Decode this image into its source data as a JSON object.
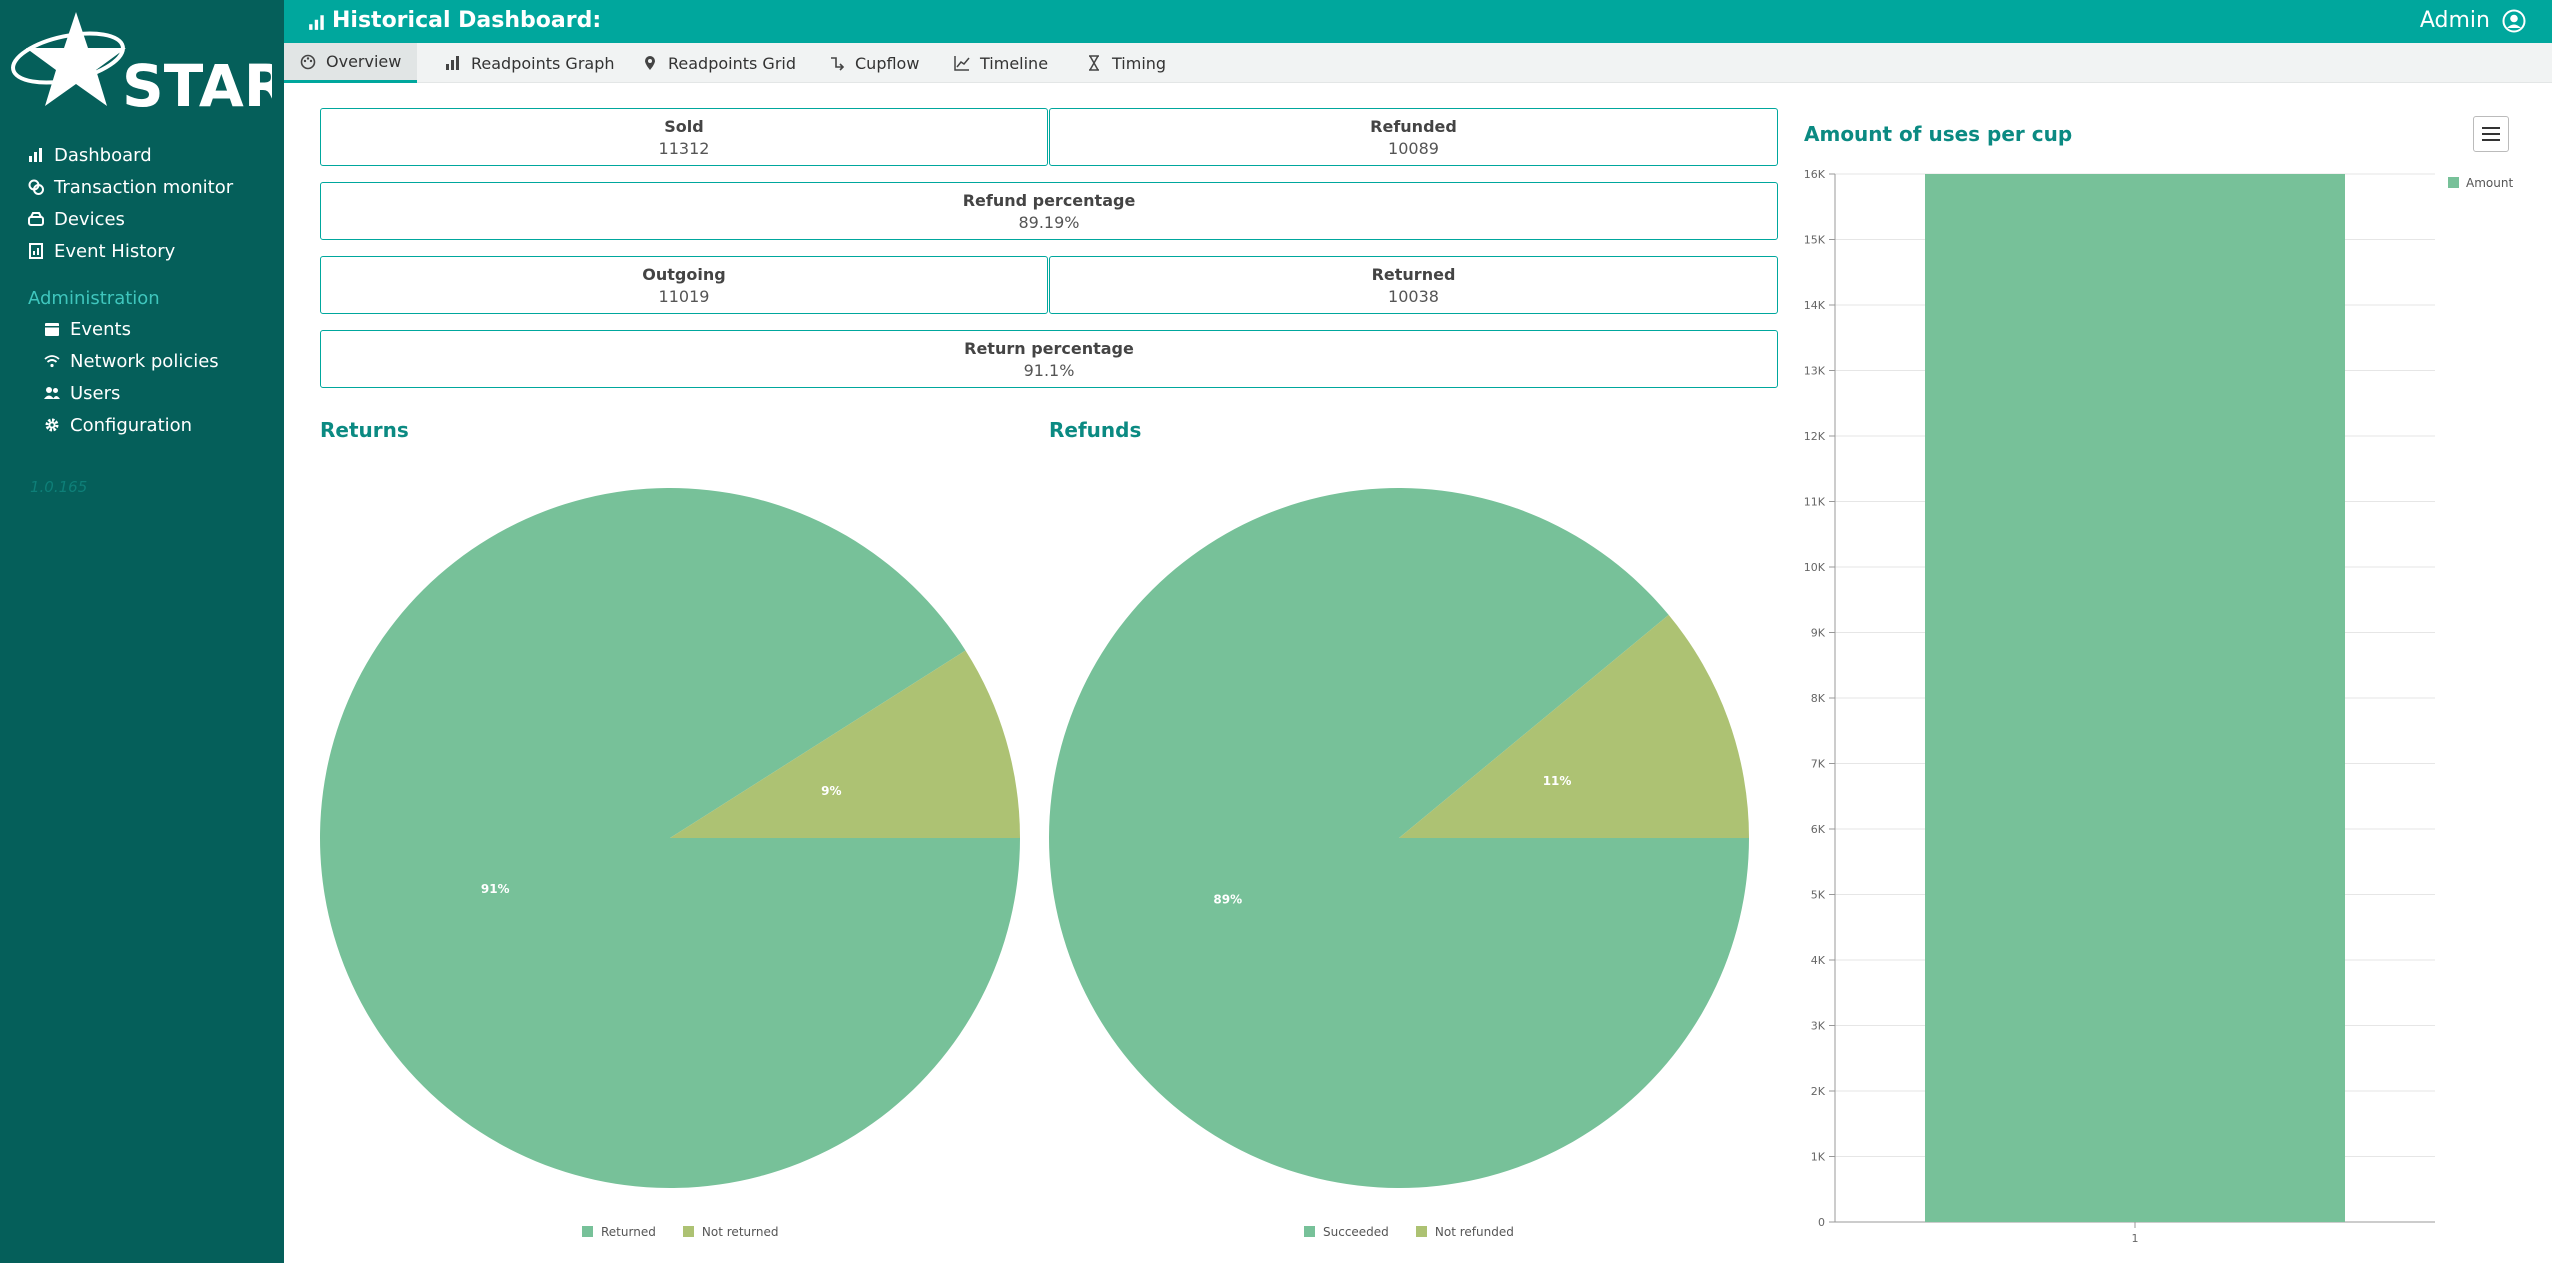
{
  "app": {
    "logo_text": "STAR",
    "version": "1.0.165"
  },
  "sidebar": {
    "items": [
      {
        "label": "Dashboard",
        "icon": "bar-chart-icon"
      },
      {
        "label": "Transaction monitor",
        "icon": "coins-icon"
      },
      {
        "label": "Devices",
        "icon": "hdd-icon"
      },
      {
        "label": "Event History",
        "icon": "chart-file-icon"
      }
    ],
    "admin_heading": "Administration",
    "admin_items": [
      {
        "label": "Events",
        "icon": "calendar-icon"
      },
      {
        "label": "Network policies",
        "icon": "wifi-icon"
      },
      {
        "label": "Users",
        "icon": "users-icon"
      },
      {
        "label": "Configuration",
        "icon": "gear-icon"
      }
    ]
  },
  "header": {
    "title": "Historical Dashboard:",
    "user": "Admin"
  },
  "tabs": [
    {
      "label": "Overview",
      "icon": "palette-icon",
      "active": true
    },
    {
      "label": "Readpoints Graph",
      "icon": "bar-chart-icon",
      "active": false
    },
    {
      "label": "Readpoints Grid",
      "icon": "map-pin-icon",
      "active": false
    },
    {
      "label": "Cupflow",
      "icon": "flow-icon",
      "active": false
    },
    {
      "label": "Timeline",
      "icon": "line-chart-icon",
      "active": false
    },
    {
      "label": "Timing",
      "icon": "hourglass-icon",
      "active": false
    }
  ],
  "stats": {
    "sold": {
      "label": "Sold",
      "value": "11312"
    },
    "refunded": {
      "label": "Refunded",
      "value": "10089"
    },
    "refund_pct": {
      "label": "Refund percentage",
      "value": "89.19%"
    },
    "outgoing": {
      "label": "Outgoing",
      "value": "11019"
    },
    "returned": {
      "label": "Returned",
      "value": "10038"
    },
    "return_pct": {
      "label": "Return percentage",
      "value": "91.1%"
    }
  },
  "colors": {
    "primary": "#00a79d",
    "sidebar": "#055f5a",
    "green": "#77c199",
    "olive": "#adc273"
  },
  "chart_data": [
    {
      "type": "pie",
      "title": "Returns",
      "labels": [
        "Returned",
        "Not returned"
      ],
      "values": [
        91,
        9
      ],
      "data_labels": [
        "91%",
        "9%"
      ],
      "legend": "bottom"
    },
    {
      "type": "pie",
      "title": "Refunds",
      "labels": [
        "Succeeded",
        "Not refunded"
      ],
      "values": [
        89,
        11
      ],
      "data_labels": [
        "89%",
        "11%"
      ],
      "legend": "bottom"
    },
    {
      "type": "bar",
      "title": "Amount of uses per cup",
      "categories": [
        "1"
      ],
      "series": [
        {
          "name": "Amount",
          "values": [
            16000
          ]
        }
      ],
      "ylim": [
        0,
        16000
      ],
      "yticks": [
        "0",
        "1K",
        "2K",
        "3K",
        "4K",
        "5K",
        "6K",
        "7K",
        "8K",
        "9K",
        "10K",
        "11K",
        "12K",
        "13K",
        "14K",
        "15K",
        "16K"
      ],
      "grid": true,
      "legend": "top-right"
    }
  ]
}
